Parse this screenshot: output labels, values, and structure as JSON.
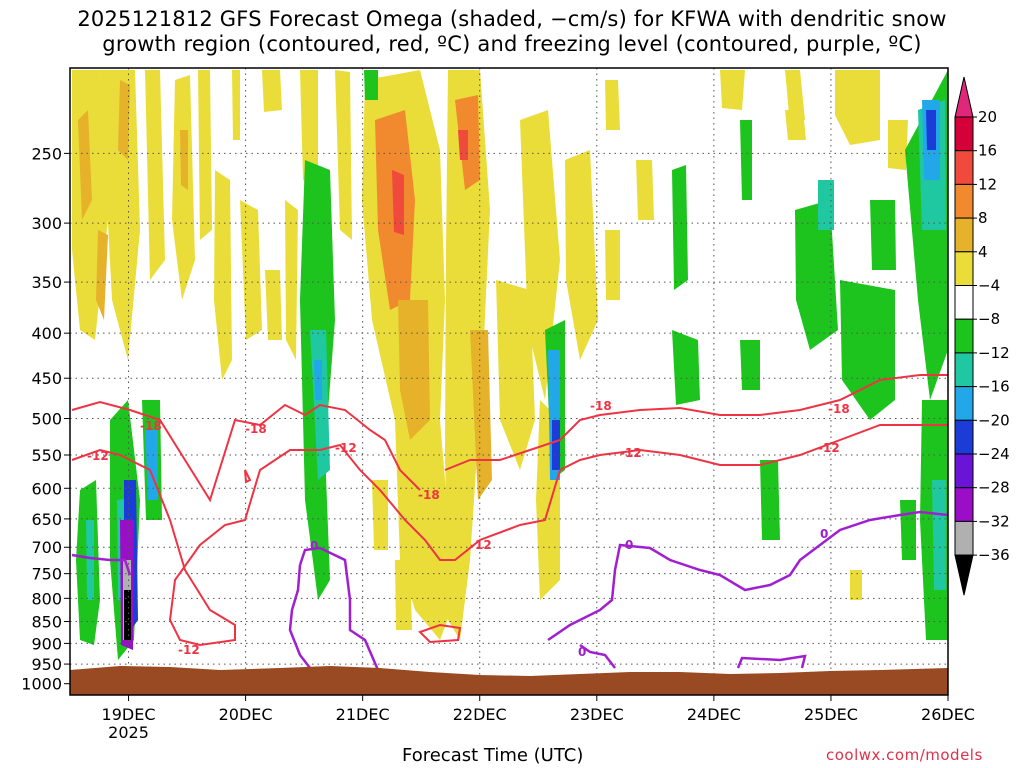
{
  "title": {
    "line1": "2025121812 GFS Forecast Omega (shaded, −cm/s) for KFWA with dendritic snow",
    "line2": "growth region (contoured, red, ºC) and freezing level (contoured, purple, ºC)"
  },
  "credit": "coolwx.com/models",
  "chart_data": {
    "type": "time-height-section",
    "xlabel": "Forecast Time (UTC)",
    "ylabel": "",
    "x_range_days": [
      18.5,
      26.0
    ],
    "x_ticks": [
      {
        "day": 19,
        "label": "19DEC",
        "sublabel": "2025"
      },
      {
        "day": 20,
        "label": "20DEC"
      },
      {
        "day": 21,
        "label": "21DEC"
      },
      {
        "day": 22,
        "label": "22DEC"
      },
      {
        "day": 23,
        "label": "23DEC"
      },
      {
        "day": 24,
        "label": "24DEC"
      },
      {
        "day": 25,
        "label": "25DEC"
      },
      {
        "day": 26,
        "label": "26DEC"
      }
    ],
    "y_range_hpa": [
      1030,
      200
    ],
    "y_ticks": [
      250,
      300,
      350,
      400,
      450,
      500,
      550,
      600,
      650,
      700,
      750,
      800,
      850,
      900,
      950,
      1000
    ],
    "grid": "dotted",
    "colorbar": {
      "labels": [
        "20",
        "16",
        "12",
        "8",
        "4",
        "−4",
        "−8",
        "−12",
        "−16",
        "−20",
        "−24",
        "−28",
        "−32",
        "−36"
      ],
      "colors": [
        "#d3003a",
        "#f04a3c",
        "#f18a2e",
        "#e5b22a",
        "#eadd3a",
        "#ffffff",
        "#1ec41e",
        "#1fc8a0",
        "#22a8e8",
        "#1c3cd8",
        "#6a14d8",
        "#9a0ec8",
        "#b0b0b0",
        "#000000"
      ],
      "top_arrow_color": "#e0287a",
      "bottom_arrow_color": "#000000"
    },
    "contours": [
      {
        "label": "-18",
        "color": "#ee3344",
        "level_C": -18
      },
      {
        "label": "-12",
        "color": "#ee3344",
        "level_C": -12
      },
      {
        "label": "0",
        "color": "#a020d0",
        "level_C": 0
      }
    ],
    "terrain_color": "#9a4a22",
    "surface_pressure_hpa": 985
  }
}
